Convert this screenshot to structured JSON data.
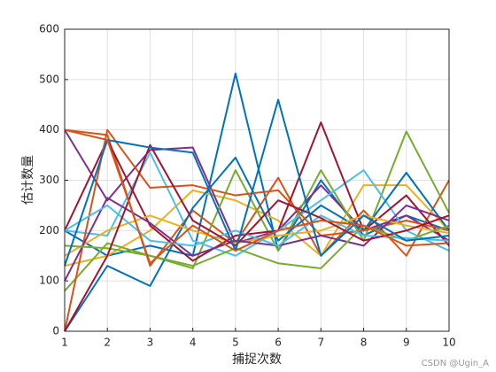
{
  "chart_data": {
    "type": "line",
    "xlabel": "捕捉次数",
    "ylabel": "估计数量",
    "watermark": "CSDN @Ugin_A",
    "x": [
      1,
      2,
      3,
      4,
      5,
      6,
      7,
      8,
      9,
      10
    ],
    "xlim": [
      1,
      10
    ],
    "xticks": [
      1,
      2,
      3,
      4,
      5,
      6,
      7,
      8,
      9,
      10
    ],
    "ylim": [
      0,
      600
    ],
    "yticks": [
      0,
      100,
      200,
      300,
      400,
      500,
      600
    ],
    "grid": true,
    "series": [
      {
        "color": "#0072BD",
        "values": [
          200,
          150,
          170,
          150,
          512,
          160,
          300,
          190,
          230,
          200
        ]
      },
      {
        "color": "#D95319",
        "values": [
          400,
          390,
          130,
          240,
          175,
          305,
          150,
          240,
          150,
          300
        ]
      },
      {
        "color": "#EDB120",
        "values": [
          130,
          150,
          200,
          280,
          260,
          220,
          150,
          290,
          290,
          200
        ]
      },
      {
        "color": "#7E2F8E",
        "values": [
          400,
          260,
          360,
          365,
          175,
          200,
          290,
          200,
          230,
          180
        ]
      },
      {
        "color": "#77AC30",
        "values": [
          80,
          175,
          150,
          125,
          320,
          160,
          320,
          180,
          397,
          235
        ]
      },
      {
        "color": "#4DBEEE",
        "values": [
          200,
          190,
          355,
          180,
          150,
          200,
          260,
          320,
          200,
          160
        ]
      },
      {
        "color": "#A2142F",
        "values": [
          200,
          380,
          210,
          140,
          190,
          200,
          415,
          200,
          270,
          170
        ]
      },
      {
        "color": "#0072BD",
        "values": [
          0,
          130,
          90,
          245,
          345,
          180,
          250,
          200,
          315,
          200
        ]
      },
      {
        "color": "#D95319",
        "values": [
          0,
          400,
          285,
          290,
          270,
          280,
          190,
          200,
          220,
          200
        ]
      },
      {
        "color": "#EDB120",
        "values": [
          150,
          200,
          230,
          200,
          175,
          190,
          200,
          230,
          210,
          195
        ]
      },
      {
        "color": "#7E2F8E",
        "values": [
          100,
          265,
          215,
          150,
          180,
          170,
          190,
          170,
          250,
          220
        ]
      },
      {
        "color": "#77AC30",
        "values": [
          170,
          165,
          150,
          130,
          165,
          135,
          125,
          210,
          180,
          210
        ]
      },
      {
        "color": "#4DBEEE",
        "values": [
          200,
          250,
          180,
          170,
          200,
          170,
          230,
          190,
          185,
          180
        ]
      },
      {
        "color": "#A2142F",
        "values": [
          0,
          150,
          370,
          220,
          170,
          260,
          225,
          180,
          200,
          230
        ]
      },
      {
        "color": "#0072BD",
        "values": [
          130,
          380,
          365,
          355,
          160,
          460,
          150,
          230,
          180,
          190
        ]
      },
      {
        "color": "#D95319",
        "values": [
          400,
          380,
          135,
          210,
          160,
          200,
          220,
          210,
          170,
          175
        ]
      }
    ]
  }
}
